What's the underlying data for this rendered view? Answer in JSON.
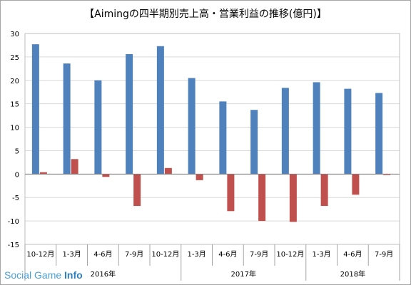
{
  "watermark": {
    "prefix": "Social Game ",
    "suffix": "Info"
  },
  "chart_data": {
    "type": "bar",
    "title": "【Aimingの四半期別売上高・営業利益の推移(億円)】",
    "xlabel": "",
    "ylabel": "",
    "ylim": [
      -15,
      30
    ],
    "yticks": [
      30,
      25,
      20,
      15,
      10,
      5,
      0,
      -5,
      -10,
      -15
    ],
    "grid": true,
    "legend": "none",
    "categories": [
      "10-12月",
      "1-3月",
      "4-6月",
      "7-9月",
      "10-12月",
      "1-3月",
      "4-6月",
      "7-9月",
      "10-12月",
      "1-3月",
      "4-6月",
      "7-9月"
    ],
    "year_groups": [
      {
        "label": "2016年",
        "start": 0,
        "end": 4
      },
      {
        "label": "2017年",
        "start": 5,
        "end": 8
      },
      {
        "label": "2018年",
        "start": 9,
        "end": 11
      }
    ],
    "series": [
      {
        "values": [
          27.7,
          23.6,
          20.0,
          25.6,
          27.3,
          20.5,
          15.5,
          13.7,
          18.4,
          19.6,
          18.2,
          17.3
        ],
        "color": "#4f81bd"
      },
      {
        "values": [
          0.4,
          3.2,
          -0.6,
          -6.8,
          1.3,
          -1.3,
          -7.9,
          -10.0,
          -10.2,
          -6.8,
          -4.4,
          -0.2
        ],
        "color": "#c0504d"
      }
    ]
  }
}
